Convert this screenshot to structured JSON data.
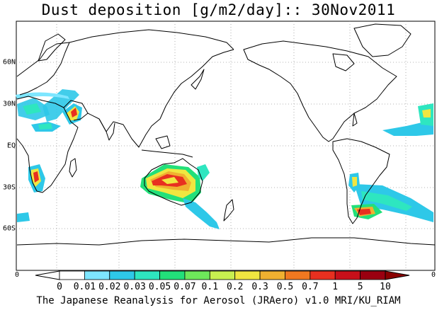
{
  "title": "Dust deposition [g/m2/day]:: 30Nov2011",
  "footer": "The Japanese Reanalysis for Aerosol (JRAero) v1.0 MRI/KU_RIAM",
  "latitude_labels": [
    "60N",
    "30N",
    "EQ",
    "30S",
    "60S"
  ],
  "axis_zero_left": "0",
  "axis_zero_right": "0",
  "colorbar": {
    "labels": [
      "0",
      "0.01",
      "0.02",
      "0.03",
      "0.05",
      "0.07",
      "0.1",
      "0.2",
      "0.3",
      "0.5",
      "0.7",
      "1",
      "5",
      "10"
    ],
    "colors": [
      "#ffffff",
      "#ffffff",
      "#7ee6ff",
      "#2ec8e8",
      "#2ee6c0",
      "#22e07a",
      "#6ee85a",
      "#c8f050",
      "#f0e640",
      "#f0b030",
      "#f07820",
      "#e83020",
      "#c8101a",
      "#9a0010",
      "#8a0000"
    ]
  },
  "dust_colors": {
    "light": "#7ee6ff",
    "cyan": "#2ec8e8",
    "teal": "#2ee6c0",
    "green": "#22e07a",
    "yellow": "#f0e640",
    "orange": "#f0b030",
    "red": "#e83020"
  }
}
